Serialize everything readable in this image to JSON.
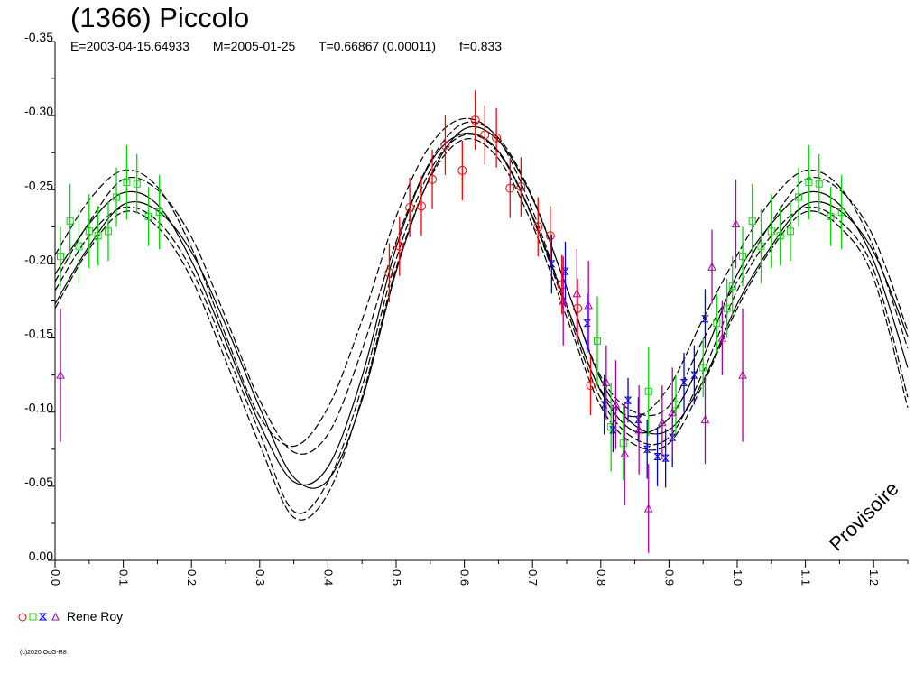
{
  "header": {
    "title": "(1366) Piccolo",
    "epoch": "E=2003-04-15.64933",
    "mid_date": "M=2005-01-25",
    "period": "T=0.66867 (0.00011)",
    "fill": "f=0.833"
  },
  "watermark": "Provisoire",
  "legend": {
    "label": "Rene Roy"
  },
  "copyright": "(c)2020 OdG-R8",
  "chart_data": {
    "type": "scatter",
    "title": "(1366) Piccolo",
    "xlim": [
      0,
      1.25
    ],
    "ylim": [
      0.0,
      -0.35
    ],
    "x_ticks": [
      "0.0",
      "0.1",
      "0.2",
      "0.3",
      "0.4",
      "0.5",
      "0.6",
      "0.7",
      "0.8",
      "0.9",
      "1.0",
      "1.1",
      "1.2"
    ],
    "y_ticks": [
      "-0.35",
      "-0.30",
      "-0.25",
      "-0.20",
      "-0.15",
      "-0.10",
      "-0.05",
      "0.00"
    ],
    "fit_curves": [
      {
        "style": "solid",
        "points": [
          [
            0.0,
            -0.193
          ],
          [
            0.05,
            -0.227
          ],
          [
            0.1,
            -0.248
          ],
          [
            0.15,
            -0.24
          ],
          [
            0.2,
            -0.202
          ],
          [
            0.25,
            -0.148
          ],
          [
            0.3,
            -0.092
          ],
          [
            0.35,
            -0.053
          ],
          [
            0.4,
            -0.063
          ],
          [
            0.45,
            -0.124
          ],
          [
            0.5,
            -0.211
          ],
          [
            0.55,
            -0.268
          ],
          [
            0.6,
            -0.288
          ],
          [
            0.65,
            -0.276
          ],
          [
            0.7,
            -0.232
          ],
          [
            0.75,
            -0.172
          ],
          [
            0.8,
            -0.114
          ],
          [
            0.85,
            -0.087
          ],
          [
            0.9,
            -0.096
          ],
          [
            0.95,
            -0.137
          ],
          [
            1.0,
            -0.193
          ],
          [
            1.05,
            -0.227
          ],
          [
            1.1,
            -0.248
          ],
          [
            1.15,
            -0.24
          ],
          [
            1.2,
            -0.202
          ],
          [
            1.25,
            -0.13
          ]
        ]
      },
      {
        "style": "solid",
        "points": [
          [
            0.0,
            -0.173
          ],
          [
            0.05,
            -0.212
          ],
          [
            0.1,
            -0.24
          ],
          [
            0.15,
            -0.236
          ],
          [
            0.2,
            -0.208
          ],
          [
            0.25,
            -0.159
          ],
          [
            0.3,
            -0.103
          ],
          [
            0.35,
            -0.056
          ],
          [
            0.4,
            -0.054
          ],
          [
            0.45,
            -0.108
          ],
          [
            0.5,
            -0.195
          ],
          [
            0.55,
            -0.259
          ],
          [
            0.6,
            -0.291
          ],
          [
            0.65,
            -0.283
          ],
          [
            0.7,
            -0.244
          ],
          [
            0.75,
            -0.184
          ],
          [
            0.8,
            -0.122
          ],
          [
            0.85,
            -0.091
          ],
          [
            0.9,
            -0.088
          ],
          [
            0.95,
            -0.121
          ],
          [
            1.0,
            -0.173
          ],
          [
            1.05,
            -0.212
          ],
          [
            1.1,
            -0.24
          ],
          [
            1.15,
            -0.236
          ],
          [
            1.2,
            -0.208
          ],
          [
            1.25,
            -0.151
          ]
        ]
      },
      {
        "style": "dashed",
        "points": [
          [
            0.0,
            -0.206
          ],
          [
            0.05,
            -0.243
          ],
          [
            0.1,
            -0.263
          ],
          [
            0.15,
            -0.252
          ],
          [
            0.2,
            -0.211
          ],
          [
            0.25,
            -0.152
          ],
          [
            0.3,
            -0.097
          ],
          [
            0.35,
            -0.077
          ],
          [
            0.4,
            -0.103
          ],
          [
            0.45,
            -0.162
          ],
          [
            0.5,
            -0.232
          ],
          [
            0.55,
            -0.28
          ],
          [
            0.6,
            -0.298
          ],
          [
            0.65,
            -0.284
          ],
          [
            0.7,
            -0.236
          ],
          [
            0.75,
            -0.172
          ],
          [
            0.8,
            -0.115
          ],
          [
            0.85,
            -0.097
          ],
          [
            0.9,
            -0.117
          ],
          [
            0.95,
            -0.163
          ],
          [
            1.0,
            -0.206
          ],
          [
            1.05,
            -0.243
          ],
          [
            1.1,
            -0.263
          ],
          [
            1.15,
            -0.252
          ],
          [
            1.2,
            -0.211
          ],
          [
            1.25,
            -0.143
          ]
        ]
      },
      {
        "style": "dashed",
        "points": [
          [
            0.0,
            -0.188
          ],
          [
            0.05,
            -0.228
          ],
          [
            0.1,
            -0.257
          ],
          [
            0.15,
            -0.25
          ],
          [
            0.2,
            -0.218
          ],
          [
            0.25,
            -0.164
          ],
          [
            0.3,
            -0.108
          ],
          [
            0.35,
            -0.073
          ],
          [
            0.4,
            -0.085
          ],
          [
            0.45,
            -0.142
          ],
          [
            0.5,
            -0.215
          ],
          [
            0.55,
            -0.269
          ],
          [
            0.6,
            -0.295
          ],
          [
            0.65,
            -0.285
          ],
          [
            0.7,
            -0.245
          ],
          [
            0.75,
            -0.184
          ],
          [
            0.8,
            -0.124
          ],
          [
            0.85,
            -0.1
          ],
          [
            0.9,
            -0.104
          ],
          [
            0.95,
            -0.149
          ],
          [
            1.0,
            -0.188
          ],
          [
            1.05,
            -0.228
          ],
          [
            1.1,
            -0.257
          ],
          [
            1.15,
            -0.25
          ],
          [
            1.2,
            -0.218
          ],
          [
            1.25,
            -0.155
          ]
        ]
      },
      {
        "style": "dashed",
        "points": [
          [
            0.0,
            -0.17
          ],
          [
            0.05,
            -0.21
          ],
          [
            0.1,
            -0.235
          ],
          [
            0.15,
            -0.225
          ],
          [
            0.2,
            -0.19
          ],
          [
            0.25,
            -0.135
          ],
          [
            0.3,
            -0.078
          ],
          [
            0.35,
            -0.029
          ],
          [
            0.4,
            -0.045
          ],
          [
            0.45,
            -0.11
          ],
          [
            0.5,
            -0.197
          ],
          [
            0.55,
            -0.258
          ],
          [
            0.6,
            -0.284
          ],
          [
            0.65,
            -0.271
          ],
          [
            0.7,
            -0.226
          ],
          [
            0.75,
            -0.164
          ],
          [
            0.8,
            -0.104
          ],
          [
            0.85,
            -0.078
          ],
          [
            0.9,
            -0.079
          ],
          [
            0.95,
            -0.119
          ],
          [
            1.0,
            -0.17
          ],
          [
            1.05,
            -0.21
          ],
          [
            1.1,
            -0.235
          ],
          [
            1.15,
            -0.225
          ],
          [
            1.2,
            -0.19
          ],
          [
            1.25,
            -0.103
          ]
        ]
      },
      {
        "style": "dashed",
        "points": [
          [
            0.0,
            -0.182
          ],
          [
            0.05,
            -0.219
          ],
          [
            0.1,
            -0.238
          ],
          [
            0.15,
            -0.229
          ],
          [
            0.2,
            -0.196
          ],
          [
            0.25,
            -0.142
          ],
          [
            0.3,
            -0.086
          ],
          [
            0.35,
            -0.033
          ],
          [
            0.4,
            -0.053
          ],
          [
            0.45,
            -0.117
          ],
          [
            0.5,
            -0.203
          ],
          [
            0.55,
            -0.263
          ],
          [
            0.6,
            -0.287
          ],
          [
            0.65,
            -0.275
          ],
          [
            0.7,
            -0.231
          ],
          [
            0.75,
            -0.169
          ],
          [
            0.8,
            -0.109
          ],
          [
            0.85,
            -0.082
          ],
          [
            0.9,
            -0.083
          ],
          [
            0.95,
            -0.127
          ],
          [
            1.0,
            -0.182
          ],
          [
            1.05,
            -0.219
          ],
          [
            1.1,
            -0.238
          ],
          [
            1.15,
            -0.229
          ],
          [
            1.2,
            -0.196
          ],
          [
            1.25,
            -0.11
          ]
        ]
      }
    ],
    "series": [
      {
        "marker": "circle",
        "color": "#ff0000",
        "points": [
          [
            0.49,
            -0.194,
            0.02
          ],
          [
            0.505,
            -0.212,
            0.02
          ],
          [
            0.52,
            -0.238,
            0.02
          ],
          [
            0.537,
            -0.239,
            0.02
          ],
          [
            0.553,
            -0.257,
            0.02
          ],
          [
            0.572,
            -0.28,
            0.02
          ],
          [
            0.597,
            -0.263,
            0.02
          ],
          [
            0.616,
            -0.297,
            0.02
          ],
          [
            0.63,
            -0.287,
            0.02
          ],
          [
            0.647,
            -0.285,
            0.02
          ],
          [
            0.667,
            -0.251,
            0.02
          ],
          [
            0.683,
            -0.252,
            0.02
          ],
          [
            0.708,
            -0.225,
            0.02
          ],
          [
            0.726,
            -0.219,
            0.02
          ],
          [
            0.743,
            -0.186,
            0.02
          ],
          [
            0.766,
            -0.17,
            0.02
          ],
          [
            0.785,
            -0.118,
            0.02
          ]
        ]
      },
      {
        "marker": "square",
        "color": "#00dd00",
        "points": [
          [
            0.008,
            -0.205,
            0.02
          ],
          [
            0.022,
            -0.229,
            0.025
          ],
          [
            0.035,
            -0.212,
            0.025
          ],
          [
            0.05,
            -0.222,
            0.025
          ],
          [
            0.063,
            -0.219,
            0.02
          ],
          [
            0.078,
            -0.222,
            0.02
          ],
          [
            0.09,
            -0.245,
            0.02
          ],
          [
            0.105,
            -0.255,
            0.025
          ],
          [
            0.12,
            -0.254,
            0.02
          ],
          [
            0.137,
            -0.232,
            0.02
          ],
          [
            0.153,
            -0.235,
            0.025
          ],
          [
            0.795,
            -0.148,
            0.03
          ],
          [
            0.815,
            -0.09,
            0.03
          ],
          [
            0.833,
            -0.079,
            0.025
          ],
          [
            0.87,
            -0.114,
            0.03
          ],
          [
            0.91,
            -0.105,
            0.02
          ],
          [
            0.95,
            -0.13,
            0.02
          ],
          [
            0.97,
            -0.16,
            0.02
          ],
          [
            0.985,
            -0.17,
            0.02
          ],
          [
            0.993,
            -0.185,
            0.02
          ],
          [
            1.008,
            -0.205,
            0.02
          ],
          [
            1.022,
            -0.229,
            0.025
          ],
          [
            1.035,
            -0.212,
            0.025
          ],
          [
            1.05,
            -0.222,
            0.025
          ],
          [
            1.063,
            -0.219,
            0.02
          ],
          [
            1.078,
            -0.222,
            0.02
          ],
          [
            1.09,
            -0.245,
            0.02
          ],
          [
            1.105,
            -0.255,
            0.025
          ],
          [
            1.12,
            -0.254,
            0.02
          ],
          [
            1.137,
            -0.232,
            0.02
          ],
          [
            1.153,
            -0.235,
            0.025
          ]
        ]
      },
      {
        "marker": "hourglass",
        "color": "#0000dd",
        "points": [
          [
            0.728,
            -0.2,
            0.02
          ],
          [
            0.748,
            -0.195,
            0.02
          ],
          [
            0.78,
            -0.16,
            0.02
          ],
          [
            0.805,
            -0.105,
            0.02
          ],
          [
            0.818,
            -0.088,
            0.015
          ],
          [
            0.84,
            -0.108,
            0.015
          ],
          [
            0.855,
            -0.095,
            0.015
          ],
          [
            0.868,
            -0.075,
            0.02
          ],
          [
            0.883,
            -0.07,
            0.02
          ],
          [
            0.895,
            -0.069,
            0.02
          ],
          [
            0.905,
            -0.083,
            0.02
          ],
          [
            0.922,
            -0.12,
            0.02
          ],
          [
            0.937,
            -0.125,
            0.02
          ],
          [
            0.953,
            -0.163,
            0.02
          ]
        ]
      },
      {
        "marker": "triangle",
        "color": "#aa00aa",
        "points": [
          [
            0.008,
            -0.125,
            0.045
          ],
          [
            0.745,
            -0.175,
            0.03
          ],
          [
            0.765,
            -0.18,
            0.03
          ],
          [
            0.782,
            -0.172,
            0.03
          ],
          [
            0.808,
            -0.12,
            0.025
          ],
          [
            0.822,
            -0.105,
            0.03
          ],
          [
            0.835,
            -0.072,
            0.035
          ],
          [
            0.856,
            -0.088,
            0.03
          ],
          [
            0.87,
            -0.035,
            0.03
          ],
          [
            0.89,
            -0.093,
            0.025
          ],
          [
            0.905,
            -0.1,
            0.03
          ],
          [
            0.953,
            -0.095,
            0.03
          ],
          [
            0.963,
            -0.198,
            0.025
          ],
          [
            0.978,
            -0.15,
            0.025
          ],
          [
            0.998,
            -0.227,
            0.03
          ],
          [
            1.008,
            -0.125,
            0.045
          ]
        ]
      }
    ]
  }
}
